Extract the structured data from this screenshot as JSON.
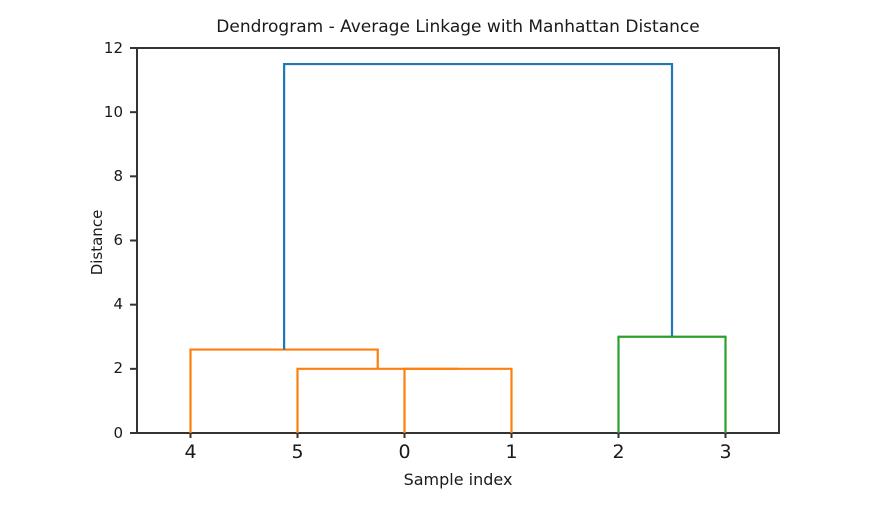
{
  "chart_data": {
    "type": "dendrogram",
    "title": "Dendrogram - Average Linkage with Manhattan Distance",
    "xlabel": "Sample index",
    "ylabel": "Distance",
    "xlim": [
      0,
      60
    ],
    "ylim": [
      0,
      12
    ],
    "ytick_values": [
      0,
      2,
      4,
      6,
      8,
      10,
      12
    ],
    "grid": false,
    "legend": null,
    "leaves": [
      {
        "label": "4",
        "x": 5
      },
      {
        "label": "5",
        "x": 15
      },
      {
        "label": "0",
        "x": 25
      },
      {
        "label": "1",
        "x": 35
      },
      {
        "label": "2",
        "x": 45
      },
      {
        "label": "3",
        "x": 55
      }
    ],
    "merges": [
      {
        "members": [
          "0",
          "1"
        ],
        "height": 2.0,
        "color": "#ff7f0e"
      },
      {
        "members": [
          "5",
          "0+1"
        ],
        "height": 2.0,
        "color": "#ff7f0e"
      },
      {
        "members": [
          "4",
          "5+0+1"
        ],
        "height": 2.6,
        "color": "#ff7f0e"
      },
      {
        "members": [
          "2",
          "3"
        ],
        "height": 3.0,
        "color": "#2ca02c"
      },
      {
        "members": [
          "4+5+0+1",
          "2+3"
        ],
        "height": 11.5,
        "color": "#1f77b4"
      }
    ],
    "links": [
      {
        "x": [
          25,
          25,
          35,
          35
        ],
        "y": [
          0,
          2.0,
          2.0,
          0
        ],
        "color": "#ff7f0e"
      },
      {
        "x": [
          15,
          15,
          30,
          30
        ],
        "y": [
          0,
          2.0,
          2.0,
          2.0
        ],
        "color": "#ff7f0e"
      },
      {
        "x": [
          5,
          5,
          22.5,
          22.5
        ],
        "y": [
          0,
          2.6,
          2.6,
          2.0
        ],
        "color": "#ff7f0e"
      },
      {
        "x": [
          45,
          45,
          55,
          55
        ],
        "y": [
          0,
          3.0,
          3.0,
          0
        ],
        "color": "#2ca02c"
      },
      {
        "x": [
          13.75,
          13.75,
          50,
          50
        ],
        "y": [
          2.6,
          11.5,
          11.5,
          3.0
        ],
        "color": "#1f77b4"
      }
    ],
    "colors": {
      "above_threshold_link": "#1f77b4",
      "left_cluster": "#ff7f0e",
      "right_cluster": "#2ca02c",
      "spine": "#333333",
      "text": "#1a1a1a",
      "background": "#ffffff"
    }
  }
}
